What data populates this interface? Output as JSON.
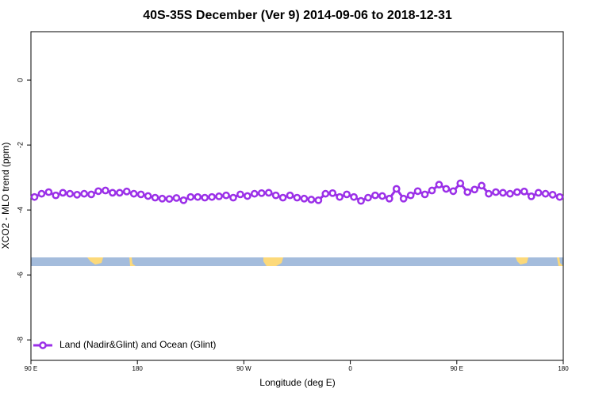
{
  "chart_data": {
    "type": "line",
    "title": "40S-35S December (Ver 9)   2014-09-06 to 2018-12-31",
    "xlabel": "Longitude (deg E)",
    "ylabel": "XCO2 - MLO trend (ppm)",
    "x": [
      93,
      99,
      105,
      111,
      117,
      123,
      129,
      135,
      141,
      147,
      153,
      159,
      165,
      171,
      177,
      183,
      189,
      195,
      201,
      207,
      213,
      219,
      225,
      231,
      237,
      243,
      249,
      255,
      261,
      267,
      273,
      279,
      285,
      291,
      297,
      303,
      309,
      315,
      321,
      327,
      333,
      339,
      345,
      351,
      357,
      363,
      369,
      375,
      381,
      387,
      393,
      399,
      405,
      411,
      417,
      423,
      429,
      435,
      441,
      447,
      453,
      459,
      465,
      471,
      477,
      483,
      489,
      495,
      501,
      507,
      513,
      519,
      525,
      531,
      537
    ],
    "series": [
      {
        "name": "Land (Nadir&Glint) and Ocean (Glint)",
        "color": "#9b30e8",
        "values": [
          -3.6,
          -3.5,
          -3.45,
          -3.55,
          -3.47,
          -3.5,
          -3.53,
          -3.5,
          -3.52,
          -3.42,
          -3.4,
          -3.47,
          -3.47,
          -3.43,
          -3.5,
          -3.52,
          -3.57,
          -3.62,
          -3.65,
          -3.66,
          -3.63,
          -3.7,
          -3.6,
          -3.6,
          -3.62,
          -3.6,
          -3.58,
          -3.55,
          -3.62,
          -3.52,
          -3.57,
          -3.5,
          -3.48,
          -3.47,
          -3.55,
          -3.62,
          -3.55,
          -3.62,
          -3.65,
          -3.68,
          -3.7,
          -3.5,
          -3.48,
          -3.6,
          -3.52,
          -3.6,
          -3.72,
          -3.62,
          -3.55,
          -3.57,
          -3.65,
          -3.35,
          -3.65,
          -3.55,
          -3.42,
          -3.52,
          -3.4,
          -3.22,
          -3.35,
          -3.42,
          -3.18,
          -3.45,
          -3.37,
          -3.25,
          -3.5,
          -3.45,
          -3.47,
          -3.5,
          -3.45,
          -3.43,
          -3.58,
          -3.47,
          -3.5,
          -3.53,
          -3.6
        ]
      }
    ],
    "xlim": [
      90,
      540
    ],
    "xticks": [
      {
        "value": 90,
        "label": "90 E"
      },
      180,
      {
        "value": 270,
        "label": "90 W"
      },
      {
        "value": 360,
        "label": "0"
      },
      {
        "value": 450,
        "label": "90 E"
      },
      {
        "value": 540,
        "label": "180"
      }
    ],
    "ylim": [
      -8.63,
      1.49
    ],
    "yticks": [
      0,
      -2,
      -4,
      -6,
      -8
    ],
    "grid": false,
    "legend": "lower left"
  }
}
